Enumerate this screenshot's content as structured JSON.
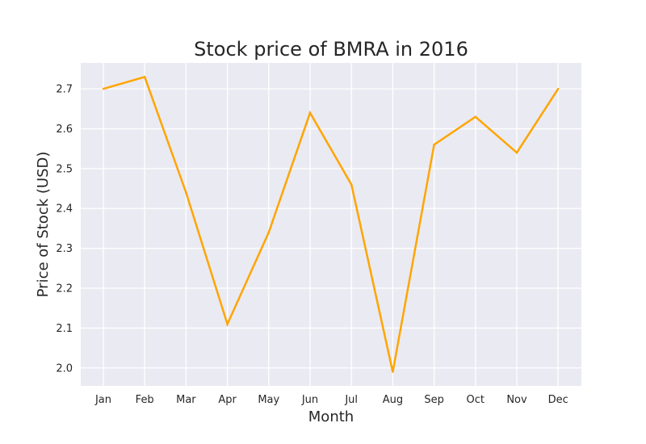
{
  "chart_data": {
    "type": "line",
    "title": "Stock price of BMRA in 2016",
    "xlabel": "Month",
    "ylabel": "Price of Stock (USD)",
    "categories": [
      "Jan",
      "Feb",
      "Mar",
      "Apr",
      "May",
      "Jun",
      "Jul",
      "Aug",
      "Sep",
      "Oct",
      "Nov",
      "Dec"
    ],
    "values": [
      2.7,
      2.73,
      2.44,
      2.11,
      2.34,
      2.64,
      2.46,
      1.99,
      2.56,
      2.63,
      2.54,
      2.7
    ],
    "yticks": [
      "2.0",
      "2.1",
      "2.2",
      "2.3",
      "2.4",
      "2.5",
      "2.6",
      "2.7"
    ],
    "ylim": [
      1.955,
      2.765
    ],
    "grid": true,
    "line_color": "#ffa500",
    "plot_background": "#eaeaf2"
  }
}
